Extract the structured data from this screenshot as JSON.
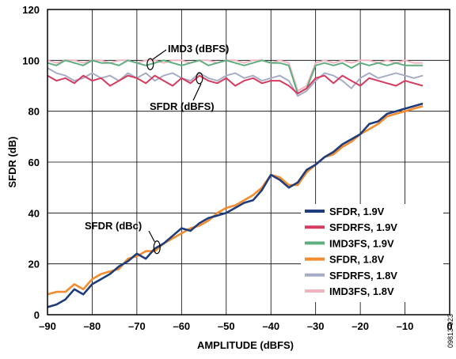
{
  "figure_id": "09813-023",
  "chart_data": {
    "type": "line",
    "xlabel": "AMPLITUDE (dBFS)",
    "ylabel": "SFDR (dB)",
    "xlim": [
      -90,
      0
    ],
    "ylim": [
      0,
      120
    ],
    "x_ticks": [
      -90,
      -80,
      -70,
      -60,
      -50,
      -40,
      -30,
      -20,
      -10,
      0
    ],
    "x_tick_labels": [
      "–90",
      "–80",
      "–70",
      "–60",
      "–50",
      "–40",
      "–30",
      "–20",
      "–10",
      "0"
    ],
    "y_ticks": [
      0,
      20,
      40,
      60,
      80,
      100,
      120
    ],
    "y_tick_labels": [
      "0",
      "20",
      "40",
      "60",
      "80",
      "100",
      "120"
    ],
    "grid": true,
    "legend_position": "bottom-right",
    "annotations": [
      "IMD3 (dBFS)",
      "SFDR (dBFS)",
      "SFDR (dBc)"
    ],
    "x": [
      -90,
      -88,
      -86,
      -84,
      -82,
      -80,
      -78,
      -76,
      -74,
      -72,
      -70,
      -68,
      -66,
      -64,
      -62,
      -60,
      -58,
      -56,
      -54,
      -52,
      -50,
      -48,
      -46,
      -44,
      -42,
      -40,
      -38,
      -36,
      -34,
      -32,
      -30,
      -28,
      -26,
      -24,
      -22,
      -20,
      -18,
      -16,
      -14,
      -12,
      -10,
      -8,
      -6
    ],
    "series": [
      {
        "name": "SFDR, 1.9V",
        "color": "#1f3d7a",
        "values": [
          3,
          4,
          6,
          10,
          8,
          12,
          14,
          16,
          19,
          21,
          24,
          22,
          26,
          28,
          31,
          34,
          33,
          36,
          38,
          39,
          40,
          42,
          44,
          45,
          49,
          55,
          53,
          50,
          52,
          57,
          59,
          62,
          64,
          67,
          69,
          71,
          75,
          76,
          79,
          80,
          81,
          82,
          83
        ]
      },
      {
        "name": "SFDRFS, 1.9V",
        "color": "#d63a5e",
        "values": [
          94,
          92,
          93,
          91,
          94,
          92,
          93,
          90,
          92,
          94,
          93,
          91,
          94,
          92,
          90,
          93,
          91,
          94,
          92,
          91,
          93,
          90,
          92,
          93,
          91,
          92,
          92,
          90,
          87,
          89,
          93,
          94,
          91,
          94,
          92,
          90,
          93,
          92,
          91,
          90,
          92,
          91,
          90
        ]
      },
      {
        "name": "IMD3FS, 1.9V",
        "color": "#5fae7e",
        "values": [
          99,
          98,
          100,
          99,
          98,
          100,
          99,
          99,
          98,
          100,
          99,
          98,
          99,
          100,
          99,
          98,
          99,
          100,
          98,
          99,
          100,
          99,
          98,
          99,
          100,
          99,
          99,
          98,
          87,
          89,
          98,
          99,
          98,
          99,
          97,
          99,
          98,
          99,
          98,
          99,
          98,
          98,
          98
        ]
      },
      {
        "name": "SFDR, 1.8V",
        "color": "#f28c2e",
        "values": [
          8,
          9,
          9,
          12,
          10,
          14,
          16,
          17,
          18,
          22,
          23,
          25,
          25,
          28,
          30,
          32,
          34,
          35,
          37,
          40,
          42,
          43,
          45,
          47,
          50,
          55,
          54,
          51,
          51,
          56,
          59,
          62,
          63,
          66,
          68,
          71,
          73,
          75,
          78,
          79,
          80,
          81,
          82
        ]
      },
      {
        "name": "SFDRFS, 1.8V",
        "color": "#a7acc6",
        "values": [
          97,
          95,
          94,
          92,
          93,
          95,
          93,
          94,
          92,
          95,
          93,
          95,
          92,
          94,
          95,
          93,
          92,
          95,
          93,
          92,
          94,
          95,
          93,
          94,
          92,
          93,
          94,
          92,
          86,
          88,
          92,
          95,
          94,
          92,
          89,
          93,
          95,
          93,
          94,
          95,
          94,
          93,
          94
        ]
      },
      {
        "name": "IMD3FS, 1.8V",
        "color": "#f2b3c1",
        "values": [
          100,
          99,
          100,
          100,
          99,
          100,
          100,
          99,
          100,
          100,
          99,
          100,
          100,
          99,
          100,
          100,
          99,
          100,
          100,
          99,
          100,
          100,
          99,
          100,
          100,
          99,
          100,
          99,
          88,
          90,
          99,
          100,
          99,
          100,
          99,
          100,
          100,
          99,
          100,
          99,
          100,
          99,
          99
        ]
      }
    ]
  }
}
